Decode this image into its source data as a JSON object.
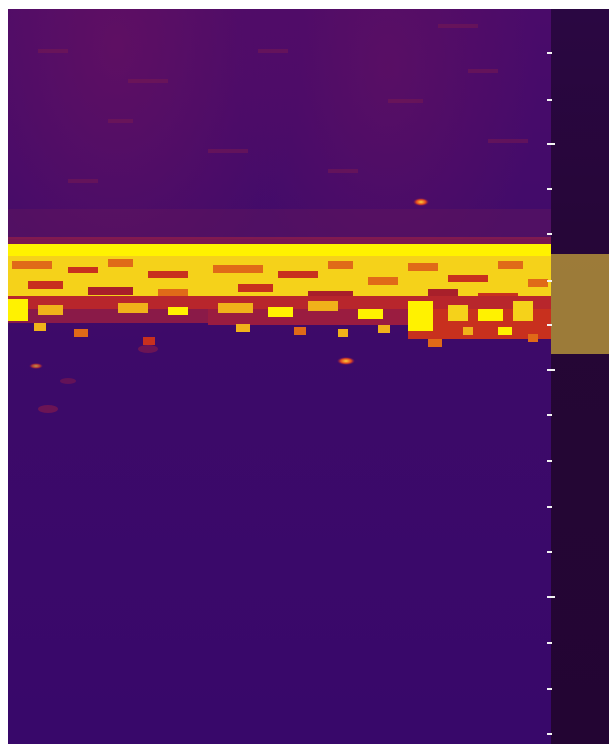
{
  "image": {
    "kind": "spectrogram",
    "colormap": "inferno",
    "colors": {
      "background": "#3e0a69",
      "mid": "#b01a3a",
      "hot": "#f07a10",
      "peak": "#fff700",
      "scale_bar": "#230533",
      "tick": "#f2f2f2"
    }
  }
}
